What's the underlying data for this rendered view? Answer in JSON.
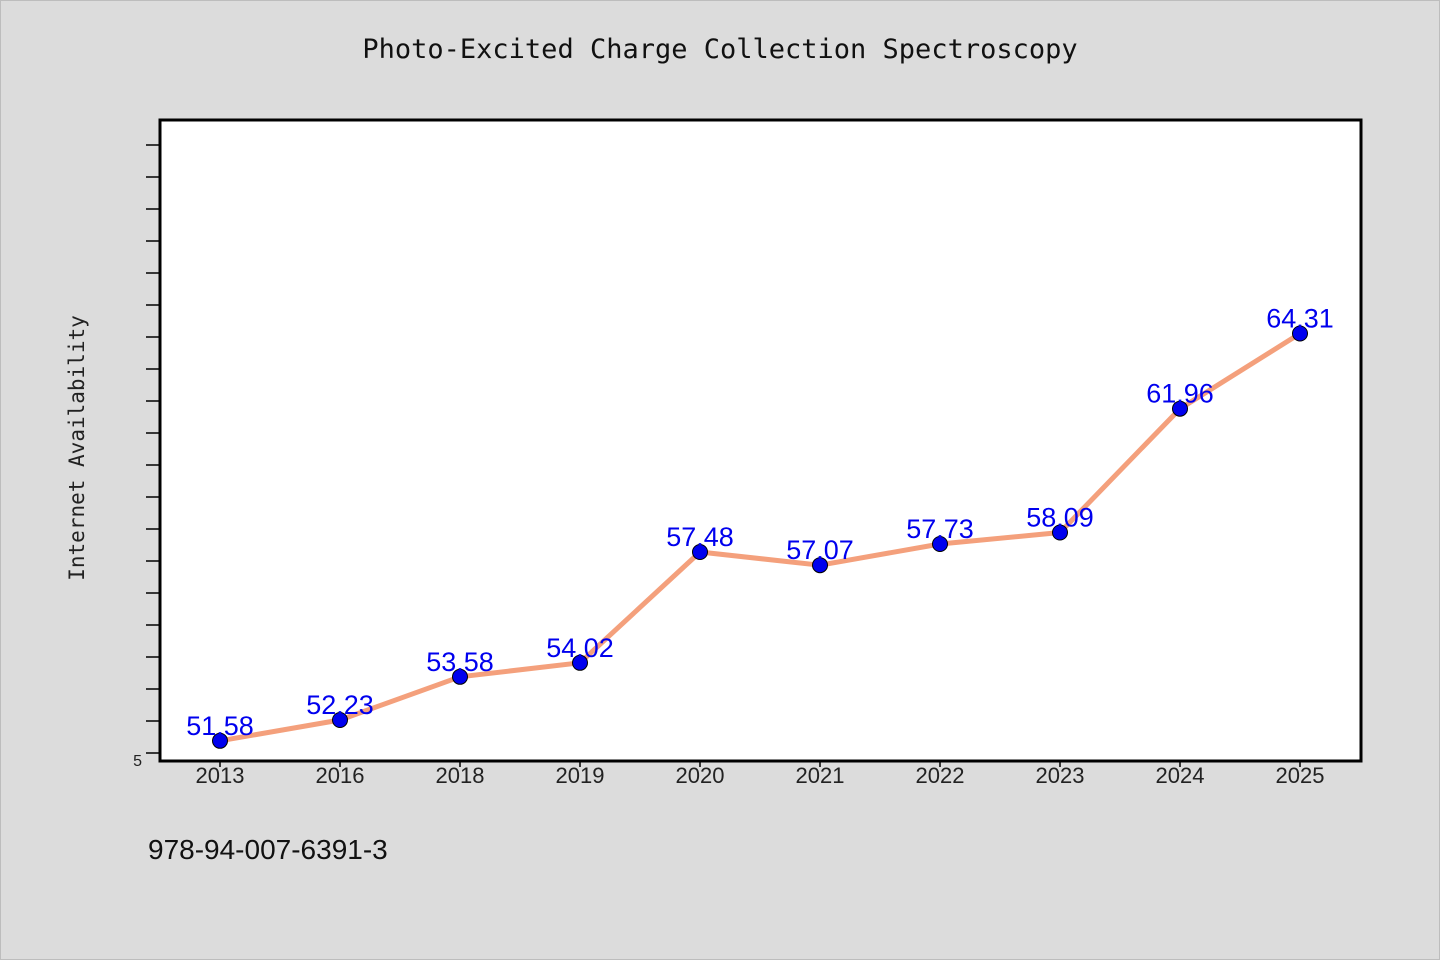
{
  "chart_data": {
    "type": "line",
    "title": "Photo-Excited Charge Collection Spectroscopy",
    "xlabel": "",
    "ylabel": "Internet Availability",
    "categories": [
      "2013",
      "2016",
      "2018",
      "2019",
      "2020",
      "2021",
      "2022",
      "2023",
      "2024",
      "2025"
    ],
    "values": [
      51.58,
      52.23,
      53.58,
      54.02,
      57.48,
      57.07,
      57.73,
      58.09,
      61.96,
      64.31
    ],
    "data_labels": [
      "51.58",
      "52.23",
      "53.58",
      "54.02",
      "57.48",
      "57.07",
      "57.73",
      "58.09",
      "61.96",
      "64.31"
    ],
    "ylim": [
      50.95,
      70.95
    ],
    "y_tick_labels": [
      "5"
    ],
    "grid": false,
    "line_color": "#f4a07c",
    "marker_color": "#0000ee",
    "label_color": "#0000ee"
  },
  "footer": {
    "code": "978-94-007-6391-3"
  }
}
